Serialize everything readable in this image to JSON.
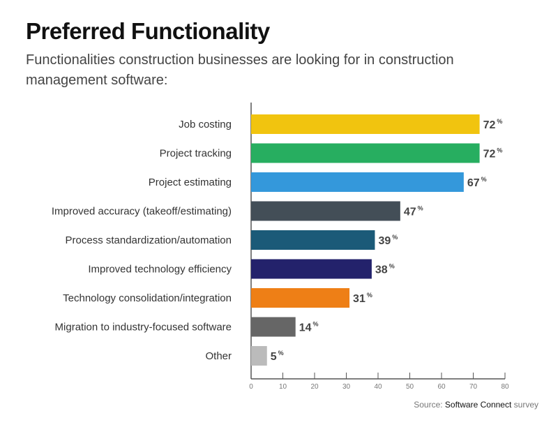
{
  "title": "Preferred Functionality",
  "subtitle": "Functionalities construction businesses are looking for in construction management software:",
  "source": {
    "prefix": "Source:",
    "name": "Software Connect",
    "suffix": "survey"
  },
  "chart_data": {
    "type": "bar",
    "orientation": "horizontal",
    "categories": [
      "Job costing",
      "Project tracking",
      "Project estimating",
      "Improved accuracy (takeoff/estimating)",
      "Process standardization/automation",
      "Improved technology efficiency",
      "Technology consolidation/integration",
      "Migration to industry-focused software",
      "Other"
    ],
    "values": [
      72,
      72,
      67,
      47,
      39,
      38,
      31,
      14,
      5
    ],
    "colors": [
      "#F1C40F",
      "#27AE60",
      "#3498DB",
      "#434E57",
      "#1B5A78",
      "#23226B",
      "#EE7F16",
      "#666666",
      "#BBBBBB"
    ],
    "value_suffix": "%",
    "xlim": [
      0,
      80
    ],
    "xticks": [
      0,
      10,
      20,
      30,
      40,
      50,
      60,
      70,
      80
    ],
    "grid": false,
    "legend": "none"
  }
}
